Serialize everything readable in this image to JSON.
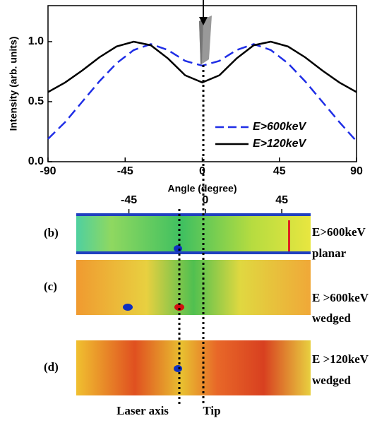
{
  "chart_data": [
    {
      "type": "line",
      "y_label": "Intensity (arb. units)",
      "x_label": "Angle (degree)",
      "x": [
        -90,
        -80,
        -70,
        -60,
        -50,
        -40,
        -30,
        -20,
        -10,
        0,
        10,
        20,
        30,
        40,
        50,
        60,
        70,
        80,
        90
      ],
      "series": [
        {
          "name": "E>600keV",
          "color": "#1f2ee6",
          "linestyle": "dashed",
          "values": [
            0.19,
            0.33,
            0.5,
            0.67,
            0.82,
            0.93,
            0.98,
            0.93,
            0.84,
            0.8,
            0.84,
            0.93,
            0.98,
            0.93,
            0.82,
            0.67,
            0.5,
            0.33,
            0.17
          ]
        },
        {
          "name": "E>120keV",
          "color": "#000000",
          "linestyle": "solid",
          "values": [
            0.58,
            0.66,
            0.76,
            0.87,
            0.96,
            1.0,
            0.97,
            0.86,
            0.72,
            0.66,
            0.72,
            0.86,
            0.97,
            1.0,
            0.96,
            0.87,
            0.76,
            0.66,
            0.58
          ]
        }
      ],
      "xlim": [
        -90,
        90
      ],
      "xticks": [
        -90,
        -45,
        0,
        45,
        90
      ],
      "ylim": [
        0,
        1.3
      ],
      "yticks": [
        {
          "value": 0,
          "label": "0.0"
        },
        0.5,
        {
          "value": 1,
          "label": "1.0"
        }
      ],
      "legend": "lower right"
    },
    {
      "type": "image",
      "xlim": [
        -76,
        62
      ],
      "xticks": [
        -45,
        0,
        45
      ],
      "panels": [
        {
          "label": "(b)",
          "text": [
            "E>600keV",
            "planar"
          ]
        },
        {
          "label": "(c)",
          "text": [
            "E >600keV",
            "wedged"
          ]
        },
        {
          "label": "(d)",
          "text": [
            "E >120keV",
            "wedged"
          ]
        }
      ],
      "markers": [
        "Laser axis",
        "Tip"
      ]
    }
  ]
}
